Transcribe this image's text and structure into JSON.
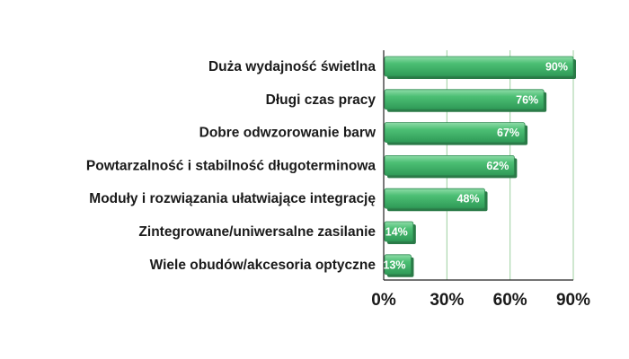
{
  "chart_data": {
    "type": "bar",
    "orientation": "horizontal",
    "categories": [
      "Duża wydajność świetlna",
      "Długi czas pracy",
      "Dobre odwzorowanie barw",
      "Powtarzalność i stabilność długoterminowa",
      "Moduły i rozwiązania ułatwiające integrację",
      "Zintegrowane/uniwersalne zasilanie",
      "Wiele obudów/akcesoria optyczne"
    ],
    "values": [
      90,
      76,
      67,
      62,
      48,
      14,
      13
    ],
    "data_labels": [
      "90%",
      "76%",
      "67%",
      "62%",
      "48%",
      "14%",
      "13%"
    ],
    "x_ticks": [
      {
        "value": 0,
        "label": "0%"
      },
      {
        "value": 30,
        "label": "30%"
      },
      {
        "value": 60,
        "label": "60%"
      },
      {
        "value": 90,
        "label": "90%"
      }
    ],
    "xlim": [
      0,
      90
    ],
    "grid": true,
    "title": "",
    "xlabel": "",
    "ylabel": "",
    "colors": {
      "bar_fill": "#3fb56a",
      "bar_highlight": "#7fd49a",
      "bar_shadow": "#2a7a47",
      "grid": "#9ccf9f",
      "axis": "#222222"
    }
  }
}
